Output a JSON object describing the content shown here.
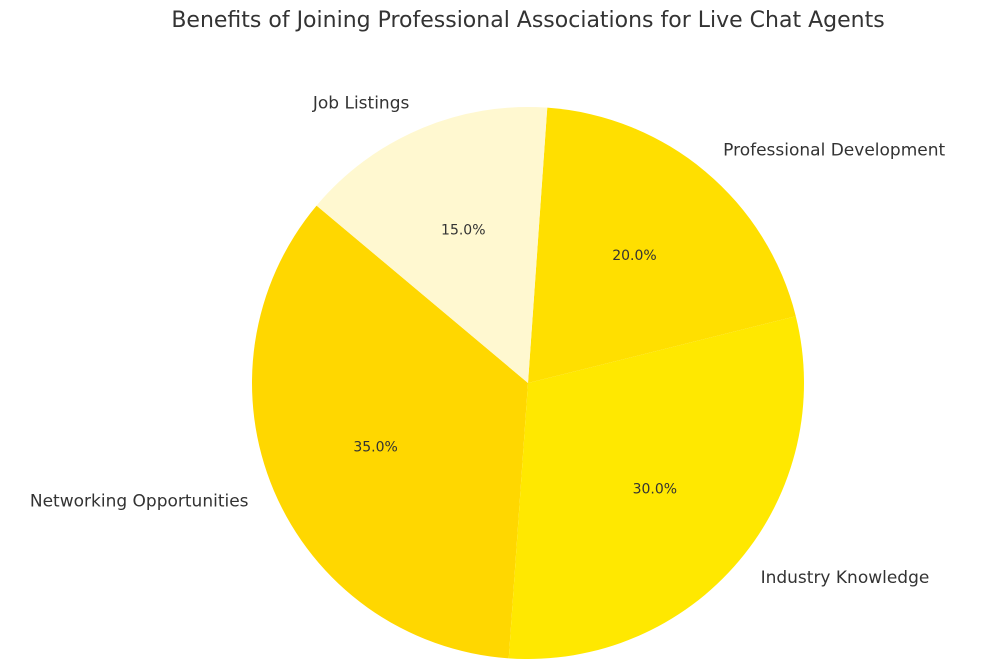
{
  "chart_data": {
    "type": "pie",
    "title": "Benefits of Joining Professional Associations for Live Chat Agents",
    "categories": [
      "Networking Opportunities",
      "Industry Knowledge",
      "Professional Development",
      "Job Listings"
    ],
    "values": [
      35,
      30,
      20,
      15
    ],
    "value_labels": [
      "35.0%",
      "30.0%",
      "20.0%",
      "15.0%"
    ],
    "colors": [
      "#ffd700",
      "#ffe800",
      "#ffdf00",
      "#fff8d0"
    ],
    "start_angle": 140
  }
}
